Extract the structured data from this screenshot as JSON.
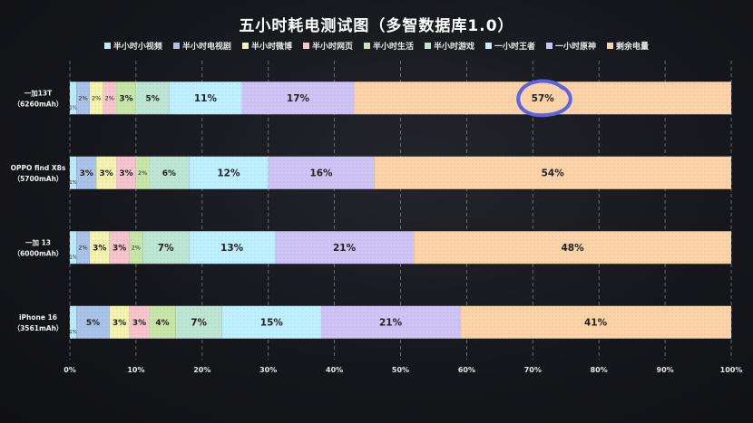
{
  "title": "五小时耗电测试图（多智数据库1.0）",
  "chart_data": {
    "type": "bar",
    "orientation": "horizontal",
    "stacked": true,
    "title": "五小时耗电测试图（多智数据库1.0）",
    "categories": [
      "一加13T\n（6260mAh）",
      "OPPO find X8s\n（5700mAh）",
      "一加 13\n（6000mAh）",
      "iPhone 16\n（3561mAh）"
    ],
    "series": [
      {
        "name": "半小时小视频",
        "color": "#b9ecfb",
        "values": [
          1,
          1,
          1,
          1
        ]
      },
      {
        "name": "半小时电视剧",
        "color": "#aac3e8",
        "values": [
          2,
          3,
          2,
          5
        ]
      },
      {
        "name": "半小时微博",
        "color": "#f4f4ae",
        "values": [
          2,
          3,
          3,
          3
        ]
      },
      {
        "name": "半小时网页",
        "color": "#f8c4cd",
        "values": [
          2,
          3,
          3,
          3
        ]
      },
      {
        "name": "半小时生活",
        "color": "#c8e6a8",
        "values": [
          3,
          2,
          2,
          4
        ]
      },
      {
        "name": "半小时游戏",
        "color": "#bde6d4",
        "values": [
          5,
          6,
          7,
          7
        ]
      },
      {
        "name": "一小时王者",
        "color": "#bff0ff",
        "values": [
          11,
          12,
          13,
          15
        ]
      },
      {
        "name": "一小时原神",
        "color": "#cfc4f6",
        "values": [
          17,
          16,
          21,
          21
        ]
      },
      {
        "name": "剩余电量",
        "color": "#fcd4a8",
        "values": [
          57,
          54,
          48,
          41
        ]
      }
    ],
    "labels": [
      [
        "1%",
        "2%",
        "2%",
        "2%",
        "3%",
        "5%",
        "11%",
        "17%",
        "57%"
      ],
      [
        "1%",
        "3%",
        "3%",
        "3%",
        "2%",
        "6%",
        "12%",
        "16%",
        "54%"
      ],
      [
        "1%",
        "2%",
        "3%",
        "3%",
        "2%",
        "7%",
        "13%",
        "21%",
        "48%"
      ],
      [
        "1%",
        "5%",
        "3%",
        "3%",
        "4%",
        "7%",
        "15%",
        "21%",
        "41%"
      ]
    ],
    "xlim": [
      0,
      100
    ],
    "xticks": [
      "0%",
      "10%",
      "20%",
      "30%",
      "40%",
      "50%",
      "60%",
      "70%",
      "80%",
      "90%",
      "100%"
    ],
    "grid": "dashed vertical",
    "legend": "top-center",
    "annotation": {
      "type": "circle",
      "target": "57%",
      "color": "#5a63e0"
    }
  }
}
